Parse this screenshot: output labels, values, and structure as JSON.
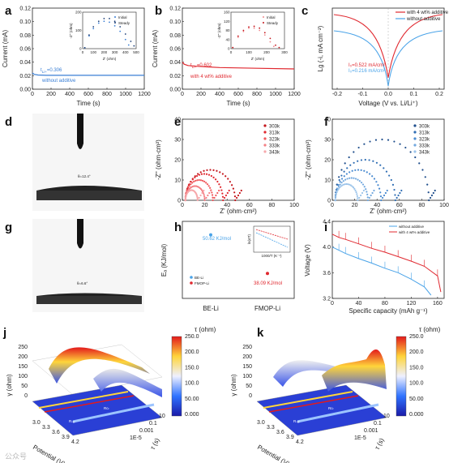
{
  "panel_labels": [
    "a",
    "b",
    "c",
    "d",
    "e",
    "f",
    "g",
    "h",
    "i",
    "j",
    "k"
  ],
  "chart_data": [
    {
      "id": "a",
      "type": "line",
      "xlabel": "Time (s)",
      "ylabel": "Current (mA)",
      "xlim": [
        0,
        1200
      ],
      "ylim": [
        0,
        0.12
      ],
      "xticks": [
        "0",
        "200",
        "400",
        "600",
        "800",
        "1000",
        "1200"
      ],
      "yticks": [
        "0.00",
        "0.02",
        "0.04",
        "0.06",
        "0.08",
        "0.10",
        "0.12"
      ],
      "annotation_t": "t",
      "annotation_sub": "Li+",
      "annotation_val": "=0.306",
      "series_label": "without additive",
      "color": "#3a7fd5",
      "series": [
        {
          "x": [
            0,
            20,
            60,
            150,
            400,
            800,
            1200
          ],
          "y": [
            0.024,
            0.022,
            0.021,
            0.0205,
            0.0205,
            0.0205,
            0.0205
          ]
        }
      ],
      "inset": {
        "xlabel": "Z' (ohm)",
        "ylabel": "-Z'' (ohm)",
        "xticks": [
          "0",
          "100",
          "200",
          "300",
          "400",
          "500"
        ],
        "yticks": [
          "0",
          "100",
          "200"
        ],
        "legend": [
          "Initial",
          "Steady"
        ],
        "initial": {
          "x": [
            20,
            60,
            100,
            150,
            200,
            250,
            300,
            350,
            400,
            430
          ],
          "y": [
            5,
            70,
            110,
            140,
            150,
            145,
            125,
            95,
            50,
            20
          ]
        },
        "steady": {
          "x": [
            20,
            60,
            100,
            150,
            200,
            250,
            300,
            350,
            400,
            450,
            480
          ],
          "y": [
            5,
            75,
            120,
            150,
            165,
            165,
            150,
            120,
            80,
            40,
            15
          ]
        }
      }
    },
    {
      "id": "b",
      "type": "line",
      "xlabel": "Time (s)",
      "ylabel": "Current (mA)",
      "xlim": [
        0,
        1200
      ],
      "ylim": [
        0,
        0.12
      ],
      "xticks": [
        "0",
        "200",
        "400",
        "600",
        "800",
        "1000",
        "1200"
      ],
      "yticks": [
        "0.00",
        "0.02",
        "0.04",
        "0.06",
        "0.08",
        "0.10",
        "0.12"
      ],
      "annotation_t": "t",
      "annotation_sub": "Li+",
      "annotation_val": "=0.602",
      "series_label": "with 4 wt% additive",
      "color": "#e0282f",
      "series": [
        {
          "x": [
            0,
            20,
            60,
            150,
            400,
            800,
            1200
          ],
          "y": [
            0.04,
            0.037,
            0.035,
            0.034,
            0.032,
            0.031,
            0.03
          ]
        }
      ],
      "inset": {
        "xlabel": "Z' (ohm)",
        "ylabel": "-Z'' (ohm)",
        "xticks": [
          "0",
          "100",
          "200",
          "300"
        ],
        "yticks": [
          "0",
          "40",
          "80",
          "120",
          "160"
        ],
        "legend": [
          "Initial",
          "Steady"
        ],
        "initial": {
          "x": [
            10,
            40,
            70,
            100,
            130,
            160,
            190,
            220,
            240
          ],
          "y": [
            5,
            50,
            75,
            90,
            90,
            80,
            60,
            30,
            10
          ]
        },
        "steady": {
          "x": [
            10,
            40,
            70,
            100,
            130,
            160,
            190,
            220,
            250,
            270
          ],
          "y": [
            5,
            55,
            80,
            95,
            98,
            90,
            70,
            45,
            15,
            5
          ]
        }
      }
    },
    {
      "id": "c",
      "type": "line",
      "xlabel": "Voltage (V vs. Li/Li⁺)",
      "ylabel": "Lg (-i, mA cm⁻²)",
      "xlim": [
        -0.25,
        0.25
      ],
      "xticks": [
        "-0.2",
        "-0.1",
        "0.0",
        "0.1",
        "0.2"
      ],
      "legend": [
        "with 4 wt% additive",
        "without additive"
      ],
      "colors": [
        "#e0282f",
        "#4aa3e8"
      ],
      "texts": [
        "I₀=0.522 mA/cm²",
        "I₀=0.216 mA/cm²"
      ]
    },
    {
      "id": "d",
      "type": "image",
      "angle_label": "θ=12.4°"
    },
    {
      "id": "e",
      "type": "scatter",
      "xlabel": "Z' (ohm·cm²)",
      "ylabel": "-Z'' (ohm·cm²)",
      "xlim": [
        0,
        110
      ],
      "ylim": [
        0,
        40
      ],
      "xticks": [
        "0",
        "20",
        "40",
        "60",
        "80",
        "100"
      ],
      "yticks": [
        "0",
        "10",
        "20",
        "30",
        "40"
      ],
      "legend": [
        "303k",
        "313k",
        "323k",
        "333k",
        "343k"
      ],
      "colors": [
        "#c4161c",
        "#e0282f",
        "#f0575b",
        "#f47f84",
        "#f6a8ab"
      ],
      "semicircles": [
        {
          "r_start": 3,
          "r_end": 52,
          "peak": 15
        },
        {
          "r_start": 3,
          "r_end": 40,
          "peak": 13
        },
        {
          "r_start": 3,
          "r_end": 30,
          "peak": 10
        },
        {
          "r_start": 3,
          "r_end": 22,
          "peak": 7
        },
        {
          "r_start": 3,
          "r_end": 15,
          "peak": 5
        }
      ]
    },
    {
      "id": "f",
      "type": "scatter",
      "xlabel": "Z' (ohm·cm²)",
      "ylabel": "-Z'' (ohm·cm²)",
      "xlim": [
        0,
        110
      ],
      "ylim": [
        0,
        40
      ],
      "xticks": [
        "0",
        "20",
        "40",
        "60",
        "80",
        "100"
      ],
      "yticks": [
        "0",
        "10",
        "20",
        "30",
        "40"
      ],
      "legend": [
        "303k",
        "313k",
        "323k",
        "333k",
        "343k"
      ],
      "colors": [
        "#1f4e8c",
        "#2f6db3",
        "#4b8bd0",
        "#72a8de",
        "#9cc4ea"
      ],
      "semicircles": [
        {
          "r_start": 3,
          "r_end": 95,
          "peak": 30
        },
        {
          "r_start": 3,
          "r_end": 62,
          "peak": 20
        },
        {
          "r_start": 3,
          "r_end": 48,
          "peak": 15
        },
        {
          "r_start": 3,
          "r_end": 35,
          "peak": 11
        },
        {
          "r_start": 3,
          "r_end": 25,
          "peak": 8
        }
      ]
    },
    {
      "id": "g",
      "type": "image",
      "angle_label": "θ=6.6°"
    },
    {
      "id": "h",
      "type": "scatter",
      "ylabel": "Eₐ (KJ/mol)",
      "categories": [
        "BE-Li",
        "FMOP-Li"
      ],
      "values": [
        50.62,
        38.09
      ],
      "labels": [
        "50.62 KJ/mol",
        "38.09 KJ/mol"
      ],
      "colors": [
        "#4aa3e8",
        "#e0282f"
      ],
      "legend": [
        "BE-Li",
        "FMOP-Li"
      ],
      "ylim": [
        30,
        55
      ],
      "inset": {
        "xlabel": "1000/T (K⁻¹)",
        "ylabel": "ln(σT)",
        "xticks": [
          "2.8",
          "2.9",
          "3.0",
          "3.1",
          "3.2",
          "3.3",
          "3.4"
        ]
      }
    },
    {
      "id": "i",
      "type": "line",
      "xlabel": "Specific capacity (mAh g⁻¹)",
      "ylabel": "Voltage (V)",
      "xlim": [
        0,
        170
      ],
      "ylim": [
        3.2,
        4.4
      ],
      "xticks": [
        "0",
        "40",
        "80",
        "120",
        "160"
      ],
      "yticks": [
        "3.2",
        "3.6",
        "4.0",
        "4.4"
      ],
      "legend": [
        "without additive",
        "with 4 wt% additive"
      ],
      "colors": [
        "#4aa3e8",
        "#e0282f"
      ],
      "series": [
        {
          "name": "without additive",
          "x": [
            0,
            10,
            20,
            40,
            60,
            80,
            100,
            120,
            140,
            150
          ],
          "y": [
            4.0,
            3.95,
            3.9,
            3.82,
            3.75,
            3.67,
            3.6,
            3.5,
            3.38,
            3.25
          ]
        },
        {
          "name": "with 4 wt% additive",
          "x": [
            0,
            10,
            20,
            40,
            60,
            80,
            100,
            120,
            140,
            160,
            165
          ],
          "y": [
            4.2,
            4.15,
            4.12,
            4.05,
            3.98,
            3.92,
            3.85,
            3.78,
            3.7,
            3.55,
            3.3
          ]
        }
      ]
    },
    {
      "id": "j",
      "type": "heatmap",
      "xlabel": "Potential (V)",
      "ylabel": "γ (ohm)",
      "zlabel": "τ (s)",
      "colorbar_title": "τ (ohm)",
      "colorbar_ticks": [
        "250.0",
        "200.0",
        "150.0",
        "100.0",
        "50.00",
        "0.000"
      ],
      "potential_ticks": [
        "3.0",
        "3.3",
        "3.6",
        "3.9",
        "4.2"
      ],
      "tau_ticks": [
        "10",
        "0.1",
        "0.001",
        "1E-5"
      ],
      "gamma_ticks": [
        "0",
        "50",
        "100",
        "150",
        "200",
        "250"
      ],
      "labels": [
        "Rₛₑᵢ",
        "Rᴄₜ"
      ]
    },
    {
      "id": "k",
      "type": "heatmap",
      "xlabel": "Potential (V)",
      "ylabel": "γ (ohm)",
      "zlabel": "τ (s)",
      "colorbar_title": "τ (ohm)",
      "colorbar_ticks": [
        "250.0",
        "200.0",
        "150.0",
        "100.0",
        "50.00",
        "0.000"
      ],
      "potential_ticks": [
        "3.0",
        "3.3",
        "3.6",
        "3.9",
        "4.2"
      ],
      "tau_ticks": [
        "10",
        "0.1",
        "0.001",
        "1E-5"
      ],
      "gamma_ticks": [
        "0",
        "50",
        "100",
        "150",
        "200",
        "250"
      ],
      "labels": [
        "Rₛₑᵢ",
        "Rᴄₜ"
      ]
    }
  ],
  "watermark": "公众号"
}
